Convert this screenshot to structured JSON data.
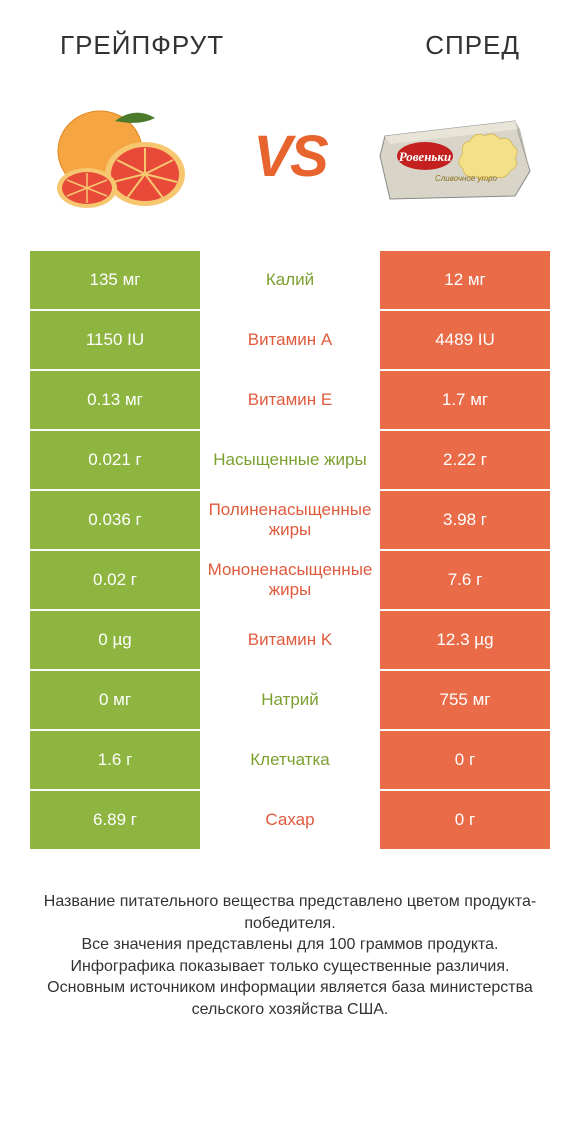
{
  "colors": {
    "green": "#8eb540",
    "orange": "#ea6b48",
    "text_green": "#7ba030",
    "text_orange": "#e05a3c",
    "vs": "#e8642e"
  },
  "header": {
    "left": "ГРЕЙПФРУТ",
    "right": "СПРЕД"
  },
  "vs": "VS",
  "rows": [
    {
      "left": "135 мг",
      "label": "Калий",
      "right": "12 мг",
      "winner": "left"
    },
    {
      "left": "1150 IU",
      "label": "Витамин A",
      "right": "4489 IU",
      "winner": "right"
    },
    {
      "left": "0.13 мг",
      "label": "Витамин E",
      "right": "1.7 мг",
      "winner": "right"
    },
    {
      "left": "0.021 г",
      "label": "Насыщенные жиры",
      "right": "2.22 г",
      "winner": "left"
    },
    {
      "left": "0.036 г",
      "label": "Полиненасыщенные жиры",
      "right": "3.98 г",
      "winner": "right"
    },
    {
      "left": "0.02 г",
      "label": "Мононенасыщенные жиры",
      "right": "7.6 г",
      "winner": "right"
    },
    {
      "left": "0 µg",
      "label": "Витамин K",
      "right": "12.3 µg",
      "winner": "right"
    },
    {
      "left": "0 мг",
      "label": "Натрий",
      "right": "755 мг",
      "winner": "left"
    },
    {
      "left": "1.6 г",
      "label": "Клетчатка",
      "right": "0 г",
      "winner": "left"
    },
    {
      "left": "6.89 г",
      "label": "Сахар",
      "right": "0 г",
      "winner": "right"
    }
  ],
  "footer": "Название питательного вещества представлено цветом продукта-победителя.\nВсе значения представлены для 100 граммов продукта.\nИнфографика показывает только существенные различия.\nОсновным источником информации является база министерства сельского хозяйства США."
}
